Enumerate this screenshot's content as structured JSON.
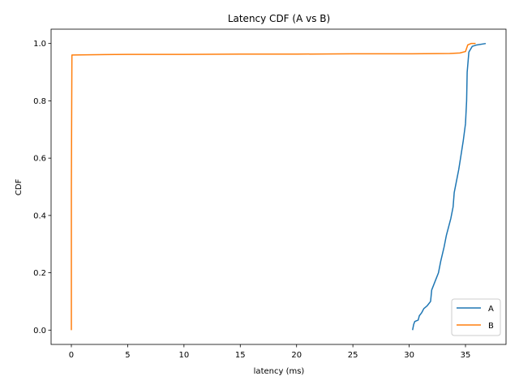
{
  "chart_data": {
    "type": "line",
    "title": "Latency CDF (A vs B)",
    "xlabel": "latency (ms)",
    "ylabel": "CDF",
    "xlim": [
      -1.8,
      38.6
    ],
    "ylim": [
      -0.05,
      1.05
    ],
    "x_ticks": [
      0,
      5,
      10,
      15,
      20,
      25,
      30,
      35
    ],
    "y_ticks": [
      0.0,
      0.2,
      0.4,
      0.6,
      0.8,
      1.0
    ],
    "x_tick_labels": [
      "0",
      "5",
      "10",
      "15",
      "20",
      "25",
      "30",
      "35"
    ],
    "y_tick_labels": [
      "0.0",
      "0.2",
      "0.4",
      "0.6",
      "0.8",
      "1.0"
    ],
    "grid": false,
    "legend_position": "lower-right",
    "series": [
      {
        "name": "A",
        "color": "#1f77b4",
        "points": [
          [
            30.3,
            0.0
          ],
          [
            30.4,
            0.02
          ],
          [
            30.5,
            0.03
          ],
          [
            30.8,
            0.035
          ],
          [
            30.9,
            0.05
          ],
          [
            31.1,
            0.06
          ],
          [
            31.3,
            0.075
          ],
          [
            31.6,
            0.085
          ],
          [
            31.9,
            0.1
          ],
          [
            32.0,
            0.14
          ],
          [
            32.3,
            0.17
          ],
          [
            32.6,
            0.2
          ],
          [
            32.8,
            0.24
          ],
          [
            33.1,
            0.29
          ],
          [
            33.3,
            0.33
          ],
          [
            33.5,
            0.36
          ],
          [
            33.7,
            0.39
          ],
          [
            33.9,
            0.43
          ],
          [
            34.0,
            0.48
          ],
          [
            34.2,
            0.52
          ],
          [
            34.4,
            0.56
          ],
          [
            34.6,
            0.61
          ],
          [
            34.8,
            0.66
          ],
          [
            35.0,
            0.72
          ],
          [
            35.1,
            0.8
          ],
          [
            35.15,
            0.9
          ],
          [
            35.3,
            0.97
          ],
          [
            35.6,
            0.99
          ],
          [
            36.0,
            0.995
          ],
          [
            36.8,
            1.0
          ]
        ]
      },
      {
        "name": "B",
        "color": "#ff7f0e",
        "points": [
          [
            0.0,
            0.0
          ],
          [
            0.0,
            0.5
          ],
          [
            0.05,
            0.96
          ],
          [
            5.0,
            0.962
          ],
          [
            10.0,
            0.962
          ],
          [
            15.0,
            0.963
          ],
          [
            20.0,
            0.963
          ],
          [
            25.0,
            0.964
          ],
          [
            30.0,
            0.964
          ],
          [
            33.6,
            0.965
          ],
          [
            34.5,
            0.967
          ],
          [
            35.0,
            0.972
          ],
          [
            35.2,
            0.995
          ],
          [
            35.5,
            1.0
          ],
          [
            35.9,
            1.0
          ]
        ]
      }
    ]
  }
}
